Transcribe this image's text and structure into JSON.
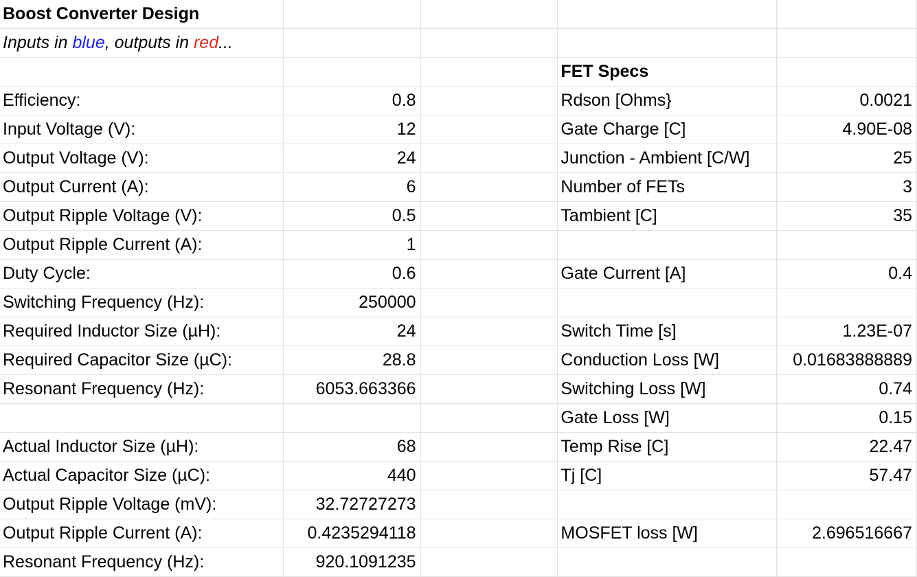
{
  "colors": {
    "input": "#2323d9",
    "output": "#d93025",
    "fet_input": "#6b85e3",
    "gridline": "#e2e2e2"
  },
  "header": {
    "title": "Boost Converter Design",
    "subtitle_prefix": "Inputs in ",
    "subtitle_blue": "blue",
    "subtitle_mid": ", outputs in ",
    "subtitle_red": "red",
    "subtitle_suffix": "..."
  },
  "design": [
    {
      "label": "Efficiency:",
      "value": "0.8",
      "kind": "input"
    },
    {
      "label": "Input Voltage (V):",
      "value": "12",
      "kind": "input"
    },
    {
      "label": "Output Voltage (V):",
      "value": "24",
      "kind": "input"
    },
    {
      "label": "Output Current (A):",
      "value": "6",
      "kind": "input"
    },
    {
      "label": "Output Ripple Voltage (V):",
      "value": "0.5",
      "kind": "input"
    },
    {
      "label": "Output Ripple Current (A):",
      "value": "1",
      "kind": "input"
    },
    {
      "label": "Duty Cycle:",
      "value": "0.6",
      "kind": "output"
    },
    {
      "label": "Switching Frequency (Hz):",
      "value": "250000",
      "kind": "input"
    },
    {
      "label": "Required Inductor Size (µH):",
      "value": "24",
      "kind": "output"
    },
    {
      "label": "Required Capacitor Size (µC):",
      "value": "28.8",
      "kind": "output"
    },
    {
      "label": "Resonant Frequency (Hz):",
      "value": "6053.663366",
      "kind": "output"
    },
    {
      "label": "",
      "value": "",
      "kind": "none"
    },
    {
      "label": "Actual Inductor Size (µH):",
      "value": "68",
      "kind": "input"
    },
    {
      "label": "Actual Capacitor Size (µC):",
      "value": "440",
      "kind": "input"
    },
    {
      "label": "Output Ripple Voltage (mV):",
      "value": "32.72727273",
      "kind": "output"
    },
    {
      "label": "Output Ripple Current (A):",
      "value": "0.4235294118",
      "kind": "output"
    },
    {
      "label": "Resonant Frequency (Hz):",
      "value": "920.1091235",
      "kind": "output"
    }
  ],
  "fet": {
    "title": "FET Specs",
    "rows": [
      {
        "label": "Rdson [Ohms}",
        "value": "0.0021",
        "kind": "fet_input"
      },
      {
        "label": "Gate Charge [C]",
        "value": "4.90E-08",
        "kind": "fet_input"
      },
      {
        "label": "Junction - Ambient [C/W]",
        "value": "25",
        "kind": "fet_input"
      },
      {
        "label": "Number of FETs",
        "value": "3",
        "kind": "fet_input"
      },
      {
        "label": "Tambient [C]",
        "value": "35",
        "kind": "fet_input"
      },
      {
        "label": "",
        "value": "",
        "kind": "none"
      },
      {
        "label": "Gate Current [A]",
        "value": "0.4",
        "kind": "fet_input"
      },
      {
        "label": "",
        "value": "",
        "kind": "none"
      },
      {
        "label": "Switch Time [s]",
        "value": "1.23E-07",
        "kind": "output"
      },
      {
        "label": "Conduction Loss [W]",
        "value": "0.01683888889",
        "kind": "output"
      },
      {
        "label": "Switching Loss [W]",
        "value": "0.74",
        "kind": "output"
      },
      {
        "label": "Gate Loss [W]",
        "value": "0.15",
        "kind": "output"
      },
      {
        "label": "Temp Rise [C]",
        "value": "22.47",
        "kind": "output"
      },
      {
        "label": "Tj [C]",
        "value": "57.47",
        "kind": "output"
      },
      {
        "label": "",
        "value": "",
        "kind": "none"
      },
      {
        "label": "MOSFET loss [W]",
        "value": "2.696516667",
        "kind": "output"
      },
      {
        "label": "",
        "value": "",
        "kind": "none"
      }
    ]
  }
}
